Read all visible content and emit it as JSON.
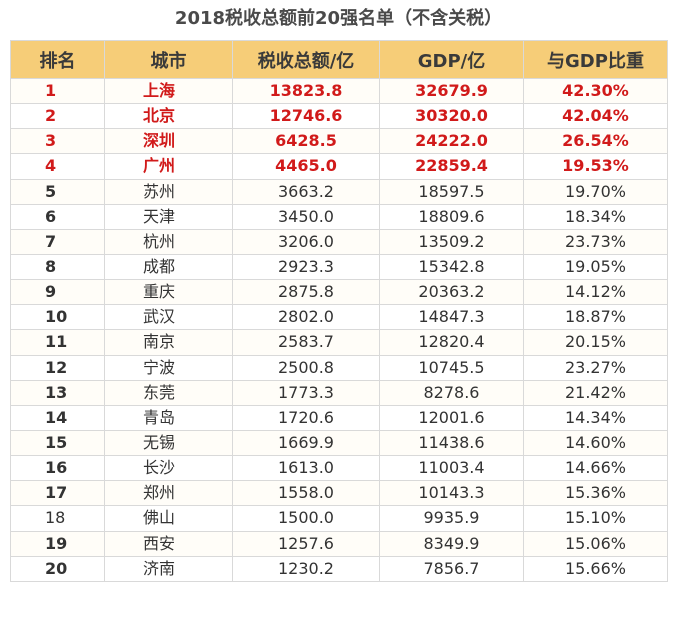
{
  "title": "2018税收总额前20强名单（不含关税）",
  "chart_data": {
    "type": "table",
    "title": "2018税收总额前20强名单（不含关税）",
    "columns": [
      "排名",
      "城市",
      "税收总额/亿",
      "GDP/亿",
      "与GDP比重"
    ],
    "rows": [
      {
        "rank": "1",
        "city": "上海",
        "tax": "13823.8",
        "gdp": "32679.9",
        "ratio": "42.30%",
        "highlight": true
      },
      {
        "rank": "2",
        "city": "北京",
        "tax": "12746.6",
        "gdp": "30320.0",
        "ratio": "42.04%",
        "highlight": true
      },
      {
        "rank": "3",
        "city": "深圳",
        "tax": "6428.5",
        "gdp": "24222.0",
        "ratio": "26.54%",
        "highlight": true
      },
      {
        "rank": "4",
        "city": "广州",
        "tax": "4465.0",
        "gdp": "22859.4",
        "ratio": "19.53%",
        "highlight": true
      },
      {
        "rank": "5",
        "city": "苏州",
        "tax": "3663.2",
        "gdp": "18597.5",
        "ratio": "19.70%",
        "highlight": false
      },
      {
        "rank": "6",
        "city": "天津",
        "tax": "3450.0",
        "gdp": "18809.6",
        "ratio": "18.34%",
        "highlight": false
      },
      {
        "rank": "7",
        "city": "杭州",
        "tax": "3206.0",
        "gdp": "13509.2",
        "ratio": "23.73%",
        "highlight": false
      },
      {
        "rank": "8",
        "city": "成都",
        "tax": "2923.3",
        "gdp": "15342.8",
        "ratio": "19.05%",
        "highlight": false
      },
      {
        "rank": "9",
        "city": "重庆",
        "tax": "2875.8",
        "gdp": "20363.2",
        "ratio": "14.12%",
        "highlight": false
      },
      {
        "rank": "10",
        "city": "武汉",
        "tax": "2802.0",
        "gdp": "14847.3",
        "ratio": "18.87%",
        "highlight": false
      },
      {
        "rank": "11",
        "city": "南京",
        "tax": "2583.7",
        "gdp": "12820.4",
        "ratio": "20.15%",
        "highlight": false
      },
      {
        "rank": "12",
        "city": "宁波",
        "tax": "2500.8",
        "gdp": "10745.5",
        "ratio": "23.27%",
        "highlight": false
      },
      {
        "rank": "13",
        "city": "东莞",
        "tax": "1773.3",
        "gdp": "8278.6",
        "ratio": "21.42%",
        "highlight": false
      },
      {
        "rank": "14",
        "city": "青岛",
        "tax": "1720.6",
        "gdp": "12001.6",
        "ratio": "14.34%",
        "highlight": false
      },
      {
        "rank": "15",
        "city": "无锡",
        "tax": "1669.9",
        "gdp": "11438.6",
        "ratio": "14.60%",
        "highlight": false
      },
      {
        "rank": "16",
        "city": "长沙",
        "tax": "1613.0",
        "gdp": "11003.4",
        "ratio": "14.66%",
        "highlight": false
      },
      {
        "rank": "17",
        "city": "郑州",
        "tax": "1558.0",
        "gdp": "10143.3",
        "ratio": "15.36%",
        "highlight": false
      },
      {
        "rank": "18",
        "city": "佛山",
        "tax": "1500.0",
        "gdp": "9935.9",
        "ratio": "15.10%",
        "highlight": false
      },
      {
        "rank": "19",
        "city": "西安",
        "tax": "1257.6",
        "gdp": "8349.9",
        "ratio": "15.06%",
        "highlight": false
      },
      {
        "rank": "20",
        "city": "济南",
        "tax": "1230.2",
        "gdp": "7856.7",
        "ratio": "15.66%",
        "highlight": false
      }
    ],
    "colors": {
      "header_bg": "#f6cd78",
      "highlight_text": "#d11a1a",
      "normal_text": "#333333"
    }
  }
}
